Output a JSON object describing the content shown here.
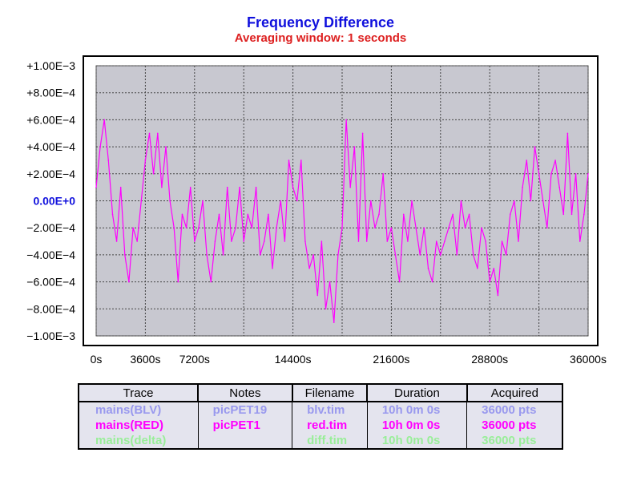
{
  "chart_data": {
    "type": "line",
    "title": "Frequency Difference",
    "subtitle": "Averaging window: 1 seconds",
    "title_color": "#1010dd",
    "subtitle_color": "#dd2020",
    "xlim": [
      0,
      36000
    ],
    "ylim": [
      -0.001,
      0.001
    ],
    "x_ticks": [
      0,
      3600,
      7200,
      14400,
      21600,
      28800,
      36000
    ],
    "x_tick_labels": [
      "0s",
      "3600s",
      "7200s",
      "14400s",
      "21600s",
      "28800s",
      "36000s"
    ],
    "y_ticks": [
      0.001,
      0.0008,
      0.0006,
      0.0004,
      0.0002,
      0,
      -0.0002,
      -0.0004,
      -0.0006,
      -0.0008,
      -0.001
    ],
    "y_tick_labels": [
      "+1.00E−3",
      "+8.00E−4",
      "+6.00E−4",
      "+4.00E−4",
      "+2.00E−4",
      "0.00E+0",
      "−2.00E−4",
      "−4.00E−4",
      "−6.00E−4",
      "−8.00E−4",
      "−1.00E−3"
    ],
    "zero_label_color": "#1010dd",
    "grid": true,
    "plot_bg": "#c8c8d0",
    "series": [
      {
        "color": "#ff00ff",
        "x": [
          0,
          300,
          600,
          900,
          1200,
          1500,
          1800,
          2100,
          2400,
          2700,
          3000,
          3300,
          3600,
          3900,
          4200,
          4500,
          4800,
          5100,
          5400,
          5700,
          6000,
          6300,
          6600,
          6900,
          7200,
          7500,
          7800,
          8100,
          8400,
          8700,
          9000,
          9300,
          9600,
          9900,
          10200,
          10500,
          10800,
          11100,
          11400,
          11700,
          12000,
          12300,
          12600,
          12900,
          13200,
          13500,
          13800,
          14100,
          14400,
          14700,
          15000,
          15300,
          15600,
          15900,
          16200,
          16500,
          16800,
          17100,
          17400,
          17700,
          18000,
          18300,
          18600,
          18900,
          19200,
          19500,
          19800,
          20100,
          20400,
          20700,
          21000,
          21300,
          21600,
          21900,
          22200,
          22500,
          22800,
          23100,
          23400,
          23700,
          24000,
          24300,
          24600,
          24900,
          25200,
          25500,
          25800,
          26100,
          26400,
          26700,
          27000,
          27300,
          27600,
          27900,
          28200,
          28500,
          28800,
          29100,
          29400,
          29700,
          30000,
          30300,
          30600,
          30900,
          31200,
          31500,
          31800,
          32100,
          32400,
          32700,
          33000,
          33300,
          33600,
          33900,
          34200,
          34500,
          34800,
          35100,
          35400,
          35700,
          36000
        ],
        "y": [
          0.0001,
          0.0004,
          0.0006,
          0.0003,
          -0.0001,
          -0.0003,
          0.0001,
          -0.0004,
          -0.0006,
          -0.0002,
          -0.0003,
          0.0,
          0.0003,
          0.0005,
          0.0002,
          0.0005,
          0.0001,
          0.0004,
          0.0,
          -0.0002,
          -0.0006,
          -0.0001,
          -0.0002,
          0.0001,
          -0.0003,
          -0.0002,
          0.0,
          -0.0004,
          -0.0006,
          -0.0003,
          -0.0001,
          -0.0004,
          0.0001,
          -0.0003,
          -0.0002,
          0.0001,
          -0.0003,
          -0.0001,
          -0.0002,
          0.0001,
          -0.0004,
          -0.0003,
          -0.0001,
          -0.0005,
          -0.0002,
          0.0,
          -0.0003,
          0.0003,
          0.0001,
          0.0,
          0.0003,
          -0.0003,
          -0.0005,
          -0.0004,
          -0.0007,
          -0.0003,
          -0.0008,
          -0.0006,
          -0.0009,
          -0.0004,
          -0.0002,
          0.0006,
          0.0001,
          0.0004,
          -0.0003,
          0.0005,
          -0.0003,
          0.0,
          -0.0002,
          -0.0001,
          0.0002,
          -0.0003,
          -0.0002,
          -0.0004,
          -0.0006,
          -0.0001,
          -0.0003,
          0.0,
          -0.0002,
          -0.0004,
          -0.0002,
          -0.0005,
          -0.0006,
          -0.0003,
          -0.0004,
          -0.0003,
          -0.0002,
          -0.0001,
          -0.0004,
          0.0,
          -0.0002,
          -0.0001,
          -0.0004,
          -0.0005,
          -0.0002,
          -0.0003,
          -0.0006,
          -0.0005,
          -0.0007,
          -0.0003,
          -0.0004,
          -0.0001,
          0.0,
          -0.0003,
          0.0001,
          0.0003,
          0.0,
          0.0004,
          0.0002,
          0.0,
          -0.0002,
          0.0002,
          0.0003,
          0.0001,
          -0.0001,
          0.0005,
          -0.0001,
          0.0002,
          -0.0003,
          -0.0001,
          0.0002
        ]
      }
    ]
  },
  "table": {
    "headers": [
      "Trace",
      "Notes",
      "Filename",
      "Duration",
      "Acquired"
    ],
    "rows": [
      {
        "color": "#9999ee",
        "cells": [
          "mains(BLV)",
          "picPET19",
          "blv.tim",
          "10h 0m 0s",
          "36000 pts"
        ]
      },
      {
        "color": "#ff00ff",
        "cells": [
          "mains(RED)",
          "picPET1",
          "red.tim",
          "10h 0m 0s",
          "36000 pts"
        ]
      },
      {
        "color": "#99ee99",
        "cells": [
          "mains(delta)",
          "",
          "diff.tim",
          "10h 0m 0s",
          "36000 pts"
        ]
      }
    ]
  }
}
